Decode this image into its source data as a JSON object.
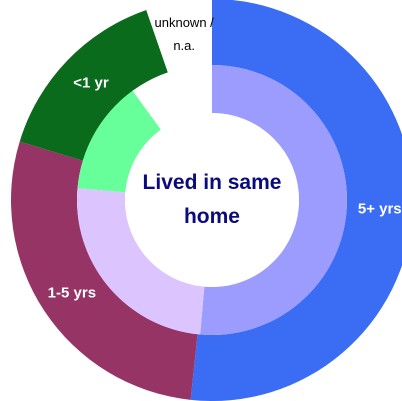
{
  "chart_data": {
    "type": "donut",
    "title": "Lived in same home",
    "categories": [
      "5+ yrs",
      "1-5 yrs",
      "<1 yr",
      "unknown / n.a."
    ],
    "label_colors": [
      "#ffffff",
      "#ffffff",
      "#ffffff",
      "#000000"
    ],
    "series": [
      {
        "values": [
          51.7,
          28,
          15,
          5.3
        ],
        "colors": [
          "#3a6cf4",
          "#963466",
          "#0b6b1c",
          "#ffffff"
        ]
      },
      {
        "values": [
          51.4,
          25,
          13.6,
          10
        ],
        "colors": [
          "#9c9cff",
          "#dcc4ff",
          "#66ff99",
          "#ffffff"
        ]
      }
    ]
  }
}
